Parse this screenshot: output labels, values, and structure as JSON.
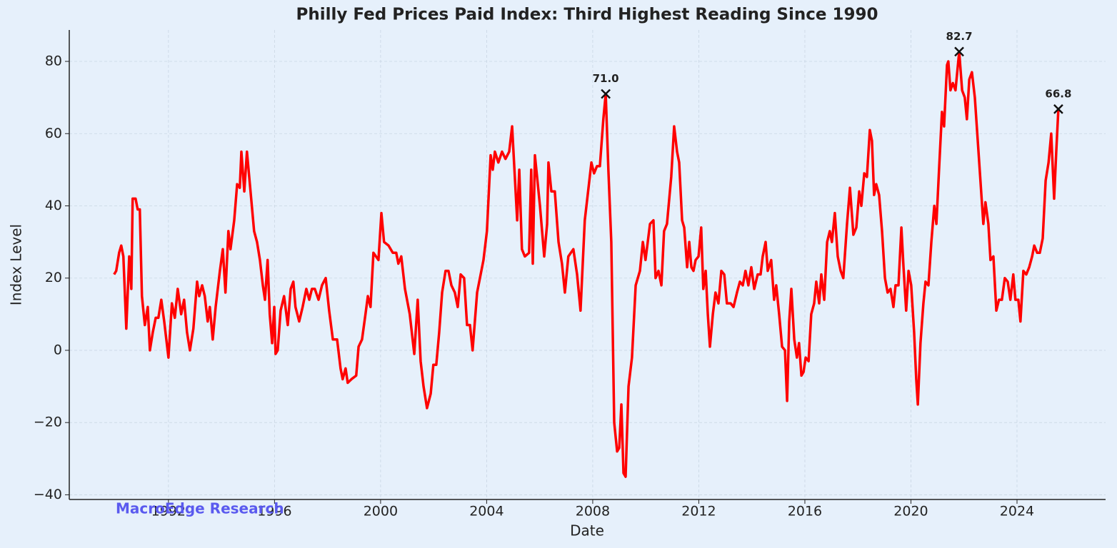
{
  "chart_data": {
    "type": "line",
    "title": "Philly Fed Prices Paid Index: Third Highest Reading Since 1990",
    "x_label": "Date",
    "y_label": "Index Level",
    "watermark": "MacroEdge Research",
    "color": "#ff0000",
    "grid": true,
    "xlim": [
      1988.26,
      2027.34
    ],
    "ylim": [
      -41.3,
      88.7
    ],
    "xticks": [
      1992,
      1996,
      2000,
      2004,
      2008,
      2012,
      2016,
      2020,
      2024
    ],
    "yticks": [
      {
        "value": -40,
        "label": "−40"
      },
      {
        "value": -20,
        "label": "−20"
      },
      0,
      20,
      40,
      60,
      80
    ],
    "x": [
      1989.95,
      1990.03,
      1990.14,
      1990.22,
      1990.3,
      1990.41,
      1990.52,
      1990.6,
      1990.65,
      1990.76,
      1990.84,
      1990.92,
      1991.0,
      1991.11,
      1991.22,
      1991.3,
      1991.41,
      1991.52,
      1991.62,
      1991.73,
      1991.84,
      1992.0,
      1992.13,
      1992.24,
      1992.35,
      1992.48,
      1992.59,
      1992.7,
      1992.81,
      1992.94,
      1993.08,
      1993.16,
      1993.27,
      1993.37,
      1993.48,
      1993.56,
      1993.67,
      1993.78,
      1993.94,
      1994.05,
      1994.15,
      1994.26,
      1994.34,
      1994.48,
      1994.59,
      1994.69,
      1994.75,
      1994.86,
      1994.96,
      1995.12,
      1995.23,
      1995.34,
      1995.45,
      1995.56,
      1995.64,
      1995.74,
      1995.82,
      1995.91,
      1995.99,
      1996.04,
      1996.12,
      1996.23,
      1996.36,
      1996.5,
      1996.61,
      1996.71,
      1996.79,
      1996.93,
      1997.06,
      1997.2,
      1997.31,
      1997.41,
      1997.52,
      1997.66,
      1997.79,
      1997.93,
      1998.06,
      1998.2,
      1998.36,
      1998.49,
      1998.57,
      1998.68,
      1998.76,
      1998.9,
      1999.08,
      1999.17,
      1999.3,
      1999.43,
      1999.52,
      1999.62,
      1999.73,
      1999.92,
      2000.03,
      2000.13,
      2000.3,
      2000.46,
      2000.59,
      2000.67,
      2000.78,
      2000.92,
      2001.1,
      2001.27,
      2001.4,
      2001.51,
      2001.62,
      2001.75,
      2001.89,
      2001.99,
      2002.1,
      2002.21,
      2002.32,
      2002.45,
      2002.56,
      2002.67,
      2002.8,
      2002.91,
      2003.02,
      2003.15,
      2003.26,
      2003.37,
      2003.47,
      2003.64,
      2003.88,
      2004.01,
      2004.15,
      2004.23,
      2004.31,
      2004.44,
      2004.58,
      2004.71,
      2004.85,
      2004.96,
      2005.15,
      2005.23,
      2005.33,
      2005.44,
      2005.6,
      2005.68,
      2005.74,
      2005.82,
      2006.01,
      2006.17,
      2006.28,
      2006.33,
      2006.44,
      2006.57,
      2006.71,
      2006.84,
      2006.95,
      2007.08,
      2007.27,
      2007.41,
      2007.54,
      2007.7,
      2007.81,
      2007.95,
      2008.05,
      2008.16,
      2008.27,
      2008.4,
      2008.49,
      2008.59,
      2008.7,
      2008.81,
      2008.92,
      2009.0,
      2009.08,
      2009.16,
      2009.24,
      2009.35,
      2009.48,
      2009.62,
      2009.78,
      2009.89,
      2009.99,
      2010.16,
      2010.29,
      2010.37,
      2010.48,
      2010.59,
      2010.69,
      2010.8,
      2010.96,
      2011.07,
      2011.18,
      2011.26,
      2011.37,
      2011.45,
      2011.56,
      2011.64,
      2011.72,
      2011.8,
      2011.88,
      2011.99,
      2012.09,
      2012.17,
      2012.26,
      2012.34,
      2012.42,
      2012.53,
      2012.63,
      2012.74,
      2012.85,
      2012.96,
      2013.06,
      2013.2,
      2013.31,
      2013.44,
      2013.55,
      2013.66,
      2013.76,
      2013.87,
      2013.98,
      2014.09,
      2014.22,
      2014.33,
      2014.41,
      2014.52,
      2014.6,
      2014.73,
      2014.84,
      2014.92,
      2015.03,
      2015.14,
      2015.25,
      2015.33,
      2015.41,
      2015.49,
      2015.6,
      2015.7,
      2015.78,
      2015.87,
      2015.95,
      2016.03,
      2016.14,
      2016.24,
      2016.35,
      2016.43,
      2016.54,
      2016.62,
      2016.73,
      2016.84,
      2016.94,
      2017.02,
      2017.13,
      2017.24,
      2017.35,
      2017.45,
      2017.59,
      2017.7,
      2017.83,
      2017.94,
      2018.05,
      2018.13,
      2018.24,
      2018.34,
      2018.45,
      2018.53,
      2018.61,
      2018.69,
      2018.8,
      2018.91,
      2019.02,
      2019.12,
      2019.23,
      2019.34,
      2019.42,
      2019.53,
      2019.64,
      2019.72,
      2019.82,
      2019.91,
      2020.01,
      2020.12,
      2020.2,
      2020.26,
      2020.36,
      2020.47,
      2020.55,
      2020.66,
      2020.77,
      2020.88,
      2020.96,
      2021.06,
      2021.17,
      2021.25,
      2021.36,
      2021.41,
      2021.49,
      2021.58,
      2021.68,
      2021.82,
      2021.93,
      2022.03,
      2022.11,
      2022.2,
      2022.3,
      2022.41,
      2022.52,
      2022.63,
      2022.73,
      2022.81,
      2022.92,
      2023.0,
      2023.11,
      2023.22,
      2023.32,
      2023.43,
      2023.54,
      2023.65,
      2023.75,
      2023.86,
      2023.94,
      2024.05,
      2024.13,
      2024.24,
      2024.35,
      2024.46,
      2024.57,
      2024.65,
      2024.76,
      2024.86,
      2024.97,
      2025.08,
      2025.19,
      2025.29,
      2025.4,
      2025.48,
      2025.56
    ],
    "values": [
      21,
      22,
      27,
      29,
      26,
      6,
      26,
      17,
      42,
      42,
      39,
      39,
      15,
      7,
      12,
      0,
      5,
      9,
      9,
      14,
      8,
      -2,
      13,
      9,
      17,
      10,
      14,
      5,
      0,
      6,
      19,
      15,
      18,
      15,
      8,
      12,
      3,
      12,
      22,
      28,
      16,
      33,
      28,
      36,
      46,
      45,
      55,
      44,
      55,
      42,
      33,
      30,
      25,
      18,
      14,
      25,
      10,
      2,
      12,
      -1,
      0,
      11,
      15,
      7,
      17,
      19,
      12,
      8,
      12,
      17,
      14,
      17,
      17,
      14,
      18,
      20,
      11,
      3,
      3,
      -5,
      -8,
      -5,
      -9,
      -8,
      -7,
      1,
      3,
      10,
      15,
      12,
      27,
      25,
      38,
      30,
      29,
      27,
      27,
      24,
      26,
      17,
      10,
      -1,
      14,
      -3,
      -10,
      -16,
      -12,
      -4,
      -4,
      5,
      16,
      22,
      22,
      18,
      16,
      12,
      21,
      20,
      7,
      7,
      0,
      16,
      25,
      33,
      54,
      50,
      55,
      52,
      55,
      53,
      55,
      62,
      36,
      50,
      28,
      26,
      27,
      50,
      24,
      54,
      40,
      26,
      35,
      52,
      44,
      44,
      30,
      24,
      16,
      26,
      28,
      21,
      11,
      36,
      43,
      52,
      49,
      51,
      51,
      64,
      71,
      50,
      30,
      -20,
      -28,
      -27,
      -15,
      -34,
      -35,
      -10,
      -2,
      18,
      22,
      30,
      25,
      35,
      36,
      20,
      22,
      18,
      33,
      35,
      48,
      62,
      55,
      52,
      36,
      34,
      23,
      30,
      23,
      22,
      25,
      26,
      34,
      17,
      22,
      10,
      1,
      10,
      16,
      13,
      22,
      21,
      13,
      13,
      12,
      16,
      19,
      18,
      22,
      18,
      23,
      17,
      21,
      21,
      26,
      30,
      22,
      25,
      14,
      18,
      10,
      1,
      0,
      -14,
      8,
      17,
      3,
      -2,
      2,
      -7,
      -6,
      -2,
      -3,
      10,
      13,
      19,
      13,
      21,
      14,
      30,
      33,
      30,
      38,
      26,
      22,
      20,
      35,
      45,
      32,
      34,
      44,
      40,
      49,
      48,
      61,
      58,
      43,
      46,
      43,
      33,
      20,
      16,
      17,
      12,
      18,
      18,
      34,
      23,
      11,
      22,
      18,
      5,
      -8,
      -15,
      2,
      13,
      19,
      18,
      30,
      40,
      35,
      50,
      66,
      62,
      79,
      80,
      72,
      74,
      72,
      82.7,
      72,
      70,
      64,
      75,
      77,
      70,
      58,
      46,
      35,
      41,
      35,
      25,
      26,
      11,
      14,
      14,
      20,
      19,
      14,
      21,
      14,
      14,
      8,
      22,
      21,
      23,
      26,
      29,
      27,
      27,
      31,
      47,
      52,
      60,
      42,
      55,
      66.8
    ],
    "annotations": [
      {
        "x": 2008.49,
        "y": 71,
        "label": "71.0"
      },
      {
        "x": 2021.82,
        "y": 82.7,
        "label": "82.7"
      },
      {
        "x": 2025.56,
        "y": 66.8,
        "label": "66.8"
      }
    ]
  }
}
